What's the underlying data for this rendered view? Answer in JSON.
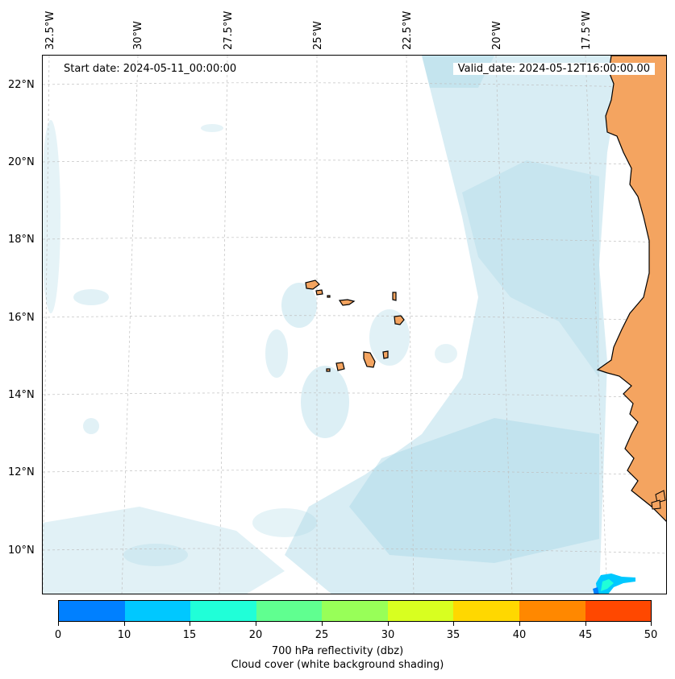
{
  "map": {
    "start_date": "Start date: 2024-05-11_00:00:00",
    "valid_date": "Valid_date: 2024-05-12T16:00:00.00",
    "longitude_labels": [
      "32.5°W",
      "30°W",
      "27.5°W",
      "25°W",
      "22.5°W",
      "20°W",
      "17.5°W"
    ],
    "latitude_labels": [
      "22°N",
      "20°N",
      "18°N",
      "16°N",
      "14°N",
      "12°N",
      "10°N"
    ],
    "gridlines": true,
    "land_color": "#f4a460",
    "cloud_color": "#a8d8e6"
  },
  "colorbar": {
    "ticks": [
      "0",
      "10",
      "15",
      "20",
      "25",
      "30",
      "35",
      "40",
      "45",
      "50"
    ],
    "colors": [
      "#0080ff",
      "#00c8ff",
      "#20ffd8",
      "#60ff90",
      "#98ff58",
      "#d8ff20",
      "#ffd800",
      "#ff8800",
      "#ff4800"
    ],
    "title_line1": "700 hPa reflectivity (dbz)",
    "title_line2": "Cloud cover (white background shading)"
  }
}
